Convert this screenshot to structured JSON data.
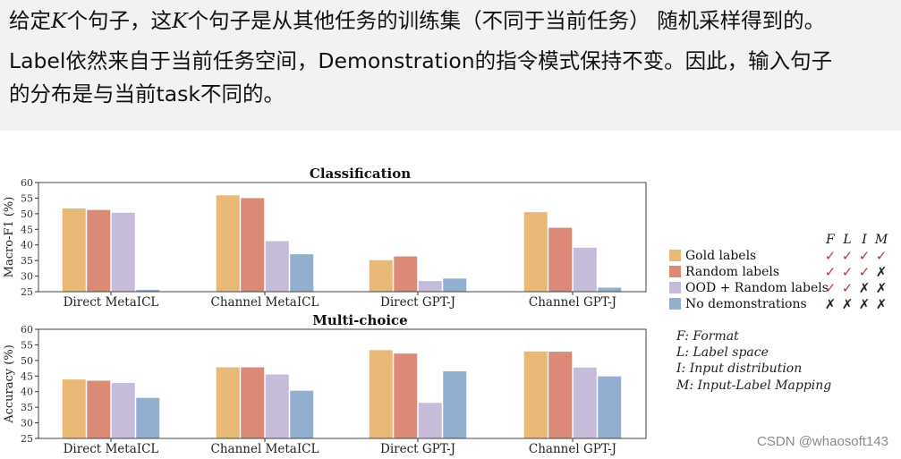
{
  "text": {
    "line1_a": "给定",
    "k_var": "K",
    "line1_b": "个句子，这",
    "line1_c": "个句子是从其他任务的训练集（不同于当前任务） 随机采样得到的。",
    "line2": "Label依然来自于当前任务空间，Demonstration的指令模式保持不变。因此，输入句子",
    "line3": "的分布是与当前task不同的。"
  },
  "colors": {
    "gold": "#E8B877",
    "random": "#DB8A78",
    "ood": "#C6BCD9",
    "none": "#93AFCF",
    "check": "#B83A3A",
    "cross": "#222222"
  },
  "chart_data": [
    {
      "type": "bar",
      "title": "Classification",
      "ylabel": "Macro-F1 (%)",
      "ylim": [
        25,
        60
      ],
      "yticks": [
        "25",
        "30",
        "35",
        "40",
        "45",
        "50",
        "55",
        "60"
      ],
      "categories": [
        "Direct MetaICL",
        "Channel MetaICL",
        "Direct GPT-J",
        "Channel GPT-J"
      ],
      "series": [
        {
          "name": "Gold labels",
          "values": [
            51.7,
            55.9,
            35.1,
            50.5
          ]
        },
        {
          "name": "Random labels",
          "values": [
            51.2,
            55.0,
            36.3,
            45.5
          ]
        },
        {
          "name": "OOD + Random labels",
          "values": [
            50.3,
            41.2,
            28.4,
            39.1
          ]
        },
        {
          "name": "No demonstrations",
          "values": [
            25.6,
            37.0,
            29.2,
            26.3
          ]
        }
      ]
    },
    {
      "type": "bar",
      "title": "Multi-choice",
      "ylabel": "Accuracy (%)",
      "ylim": [
        25,
        60
      ],
      "yticks": [
        "25",
        "30",
        "35",
        "40",
        "45",
        "50",
        "55",
        "60"
      ],
      "categories": [
        "Direct MetaICL",
        "Channel MetaICL",
        "Direct GPT-J",
        "Channel GPT-J"
      ],
      "series": [
        {
          "name": "Gold labels",
          "values": [
            43.9,
            47.8,
            53.3,
            52.9
          ]
        },
        {
          "name": "Random labels",
          "values": [
            43.5,
            47.8,
            52.2,
            52.8
          ]
        },
        {
          "name": "OOD + Random labels",
          "values": [
            42.8,
            45.5,
            36.4,
            47.7
          ]
        },
        {
          "name": "No demonstrations",
          "values": [
            38.0,
            40.3,
            46.5,
            44.9
          ]
        }
      ]
    }
  ],
  "legend": {
    "header": [
      "F",
      "L",
      "I",
      "M"
    ],
    "items": [
      {
        "label": "Gold labels",
        "marks": [
          "✓",
          "✓",
          "✓",
          "✓"
        ]
      },
      {
        "label": "Random labels",
        "marks": [
          "✓",
          "✓",
          "✓",
          "✗"
        ]
      },
      {
        "label": "OOD + Random labels",
        "marks": [
          "✓",
          "✓",
          "✗",
          "✗"
        ]
      },
      {
        "label": "No demonstrations",
        "marks": [
          "✗",
          "✗",
          "✗",
          "✗"
        ]
      }
    ]
  },
  "key": [
    "F: Format",
    "L: Label space",
    "I: Input distribution",
    "M: Input-Label Mapping"
  ],
  "watermark": "CSDN @whaosoft143"
}
